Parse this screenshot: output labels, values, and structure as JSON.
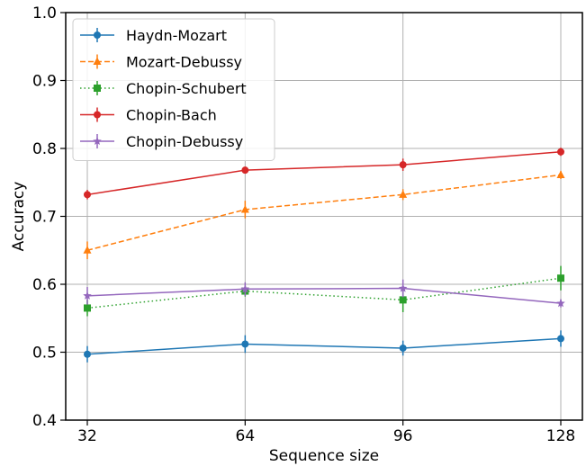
{
  "chart_data": {
    "type": "line",
    "title": "",
    "xlabel": "Sequence size",
    "ylabel": "Accuracy",
    "x": [
      32,
      64,
      96,
      128
    ],
    "x_tick_labels": [
      "32",
      "64",
      "96",
      "128"
    ],
    "y_tick_labels": [
      "0.4",
      "0.5",
      "0.6",
      "0.7",
      "0.8",
      "0.9",
      "1.0"
    ],
    "ylim": [
      0.4,
      1.0
    ],
    "grid": true,
    "legend_position": "top-left",
    "series": [
      {
        "name": "Haydn-Mozart",
        "color": "#1f77b4",
        "linestyle": "solid",
        "marker": "circle",
        "values": [
          0.497,
          0.512,
          0.506,
          0.52
        ],
        "errors": [
          0.012,
          0.013,
          0.011,
          0.012
        ]
      },
      {
        "name": "Mozart-Debussy",
        "color": "#ff7f0e",
        "linestyle": "dashed",
        "marker": "triangle",
        "values": [
          0.65,
          0.71,
          0.732,
          0.761
        ],
        "errors": [
          0.013,
          0.013,
          0.008,
          0.006
        ]
      },
      {
        "name": "Chopin-Schubert",
        "color": "#2ca02c",
        "linestyle": "dotted",
        "marker": "square",
        "values": [
          0.565,
          0.59,
          0.577,
          0.609
        ],
        "errors": [
          0.012,
          0.008,
          0.018,
          0.018
        ]
      },
      {
        "name": "Chopin-Bach",
        "color": "#d62728",
        "linestyle": "solid",
        "marker": "circle",
        "values": [
          0.732,
          0.768,
          0.776,
          0.795
        ],
        "errors": [
          0.007,
          0.005,
          0.009,
          0.006
        ]
      },
      {
        "name": "Chopin-Debussy",
        "color": "#9467bd",
        "linestyle": "solid",
        "marker": "star",
        "values": [
          0.583,
          0.593,
          0.594,
          0.572
        ],
        "errors": [
          0.013,
          0.01,
          0.013,
          0.006
        ]
      }
    ]
  }
}
